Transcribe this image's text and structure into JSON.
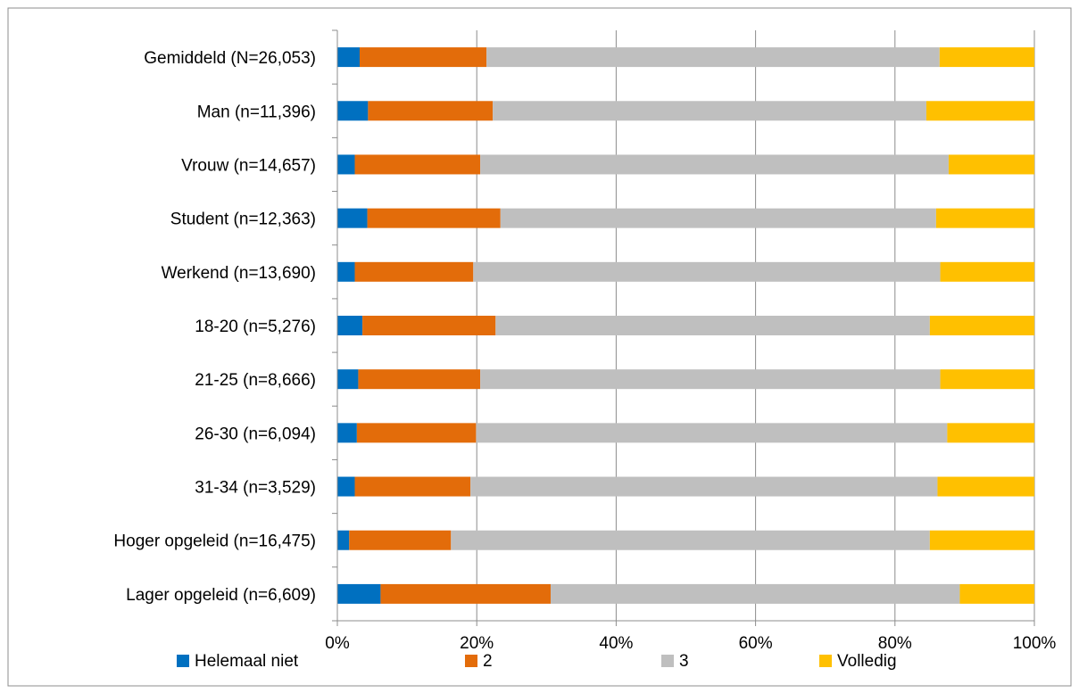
{
  "chart_data": {
    "type": "bar",
    "orientation": "horizontal",
    "stacked": "percent",
    "title": "",
    "xlabel": "",
    "ylabel": "",
    "xlim": [
      0,
      100
    ],
    "x_ticks": [
      "0%",
      "20%",
      "40%",
      "60%",
      "80%",
      "100%"
    ],
    "grid": "vertical",
    "legend_position": "bottom",
    "categories": [
      "Gemiddeld (N=26,053)",
      "Man (n=11,396)",
      "Vrouw (n=14,657)",
      "Student (n=12,363)",
      "Werkend (n=13,690)",
      "18-20 (n=5,276)",
      "21-25 (n=8,666)",
      "26-30 (n=6,094)",
      "31-34 (n=3,529)",
      "Hoger opgeleid (n=16,475)",
      "Lager opgeleid (n=6,609)"
    ],
    "series": [
      {
        "name": "Helemaal niet",
        "color": "#0070C0",
        "values": [
          3.2,
          4.4,
          2.5,
          4.3,
          2.5,
          3.6,
          3.0,
          2.8,
          2.5,
          1.7,
          6.2
        ]
      },
      {
        "name": "2",
        "color": "#E36C0A",
        "values": [
          18.2,
          17.9,
          18.0,
          19.1,
          17.0,
          19.1,
          17.5,
          17.1,
          16.6,
          14.6,
          24.4
        ]
      },
      {
        "name": "3",
        "color": "#BFBFBF",
        "values": [
          65.0,
          62.2,
          67.2,
          62.5,
          67.0,
          62.3,
          66.0,
          67.6,
          67.0,
          68.7,
          58.7
        ]
      },
      {
        "name": "Volledig",
        "color": "#FFC000",
        "values": [
          13.6,
          15.5,
          12.3,
          14.1,
          13.5,
          15.0,
          13.5,
          12.5,
          13.9,
          15.0,
          10.7
        ]
      }
    ]
  }
}
